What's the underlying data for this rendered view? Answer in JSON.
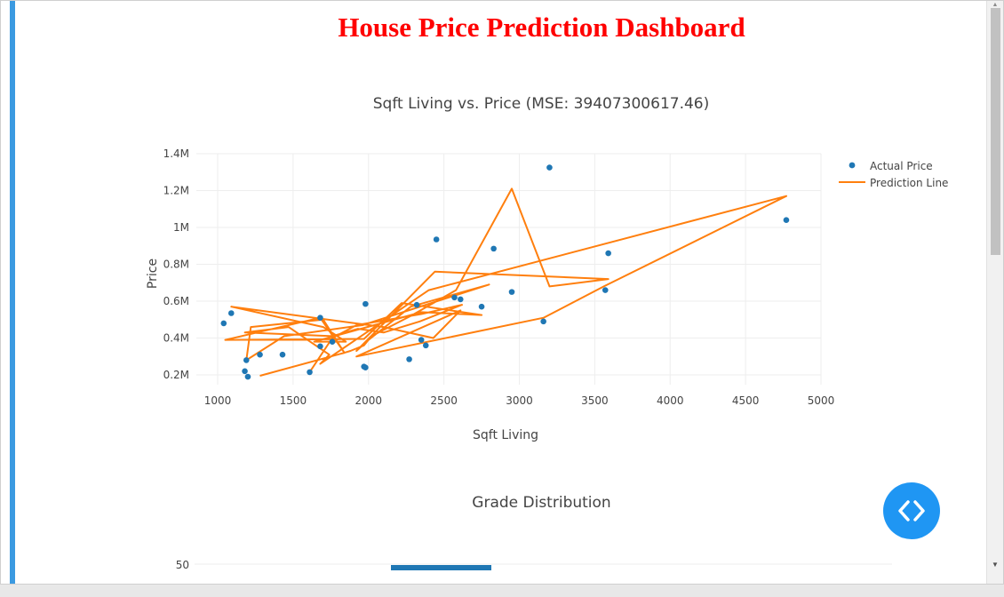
{
  "page": {
    "title": "House Price Prediction Dashboard"
  },
  "chart_data": [
    {
      "type": "scatter",
      "title": "Sqft Living vs. Price (MSE: 39407300617.46)",
      "xlabel": "Sqft Living",
      "ylabel": "Price",
      "xlim": [
        900,
        5000
      ],
      "ylim": [
        150000,
        1400000
      ],
      "x_ticks": [
        1000,
        1500,
        2000,
        2500,
        3000,
        3500,
        4000,
        4500,
        5000
      ],
      "x_tick_labels": [
        "1000",
        "1500",
        "2000",
        "2500",
        "3000",
        "3500",
        "4000",
        "4500",
        "5000"
      ],
      "y_ticks": [
        200000,
        400000,
        600000,
        800000,
        1000000,
        1200000,
        1400000
      ],
      "y_tick_labels": [
        "0.2M",
        "0.4M",
        "0.6M",
        "0.8M",
        "1M",
        "1.2M",
        "1.4M"
      ],
      "grid": true,
      "legend_position": "top-right",
      "series": [
        {
          "name": "Actual Price",
          "mode": "markers",
          "color": "#1f77b4",
          "x": [
            1040,
            1090,
            1180,
            1190,
            1200,
            1280,
            1430,
            1610,
            1680,
            1680,
            1760,
            1970,
            1980,
            1980,
            2270,
            2320,
            2350,
            2380,
            2450,
            2570,
            2610,
            2750,
            2830,
            2950,
            3160,
            3200,
            3570,
            3590,
            4770
          ],
          "y": [
            480000,
            535000,
            220000,
            280000,
            190000,
            310000,
            310000,
            215000,
            510000,
            355000,
            380000,
            245000,
            240000,
            585000,
            285000,
            580000,
            390000,
            360000,
            935000,
            620000,
            610000,
            570000,
            885000,
            650000,
            490000,
            1325000,
            660000,
            860000,
            1040000
          ]
        },
        {
          "name": "Prediction Line",
          "mode": "lines",
          "color": "#ff7f0e",
          "x": [
            1280,
            1840,
            1880,
            1970,
            2020,
            2280,
            2580,
            2950,
            3200,
            3590,
            2440,
            1920,
            2000,
            2280,
            2800,
            1960,
            1440,
            1190,
            1220,
            1700,
            1840,
            1680,
            1050,
            1970,
            2220,
            2750,
            2350,
            1640,
            1850,
            1700,
            1090,
            2100,
            2430,
            2610,
            1920,
            3160,
            3560,
            4770,
            2400,
            1680,
            1740,
            1470,
            1180,
            1760,
            1930,
            2100,
            2340,
            2620,
            2350,
            1920,
            1760,
            1610
          ],
          "y": [
            195000,
            320000,
            330000,
            360000,
            410000,
            520000,
            660000,
            1210000,
            680000,
            720000,
            760000,
            330000,
            390000,
            570000,
            690000,
            470000,
            410000,
            280000,
            460000,
            500000,
            320000,
            510000,
            390000,
            395000,
            590000,
            525000,
            540000,
            380000,
            380000,
            460000,
            570000,
            460000,
            400000,
            550000,
            300000,
            510000,
            680000,
            1170000,
            660000,
            260000,
            310000,
            460000,
            430000,
            410000,
            450000,
            430000,
            490000,
            580000,
            530000,
            470000,
            400000,
            215000
          ]
        }
      ]
    },
    {
      "type": "bar",
      "title": "Grade Distribution",
      "y_tick_labels": [
        "50"
      ],
      "series": [
        {
          "color": "#1f77b4"
        }
      ]
    }
  ],
  "ui": {
    "code_button_icon": "code-brackets-icon"
  }
}
